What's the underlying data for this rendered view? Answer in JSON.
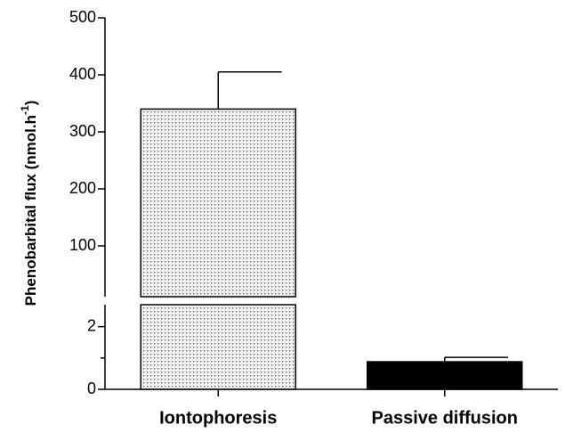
{
  "chart_data": {
    "type": "broken_bar",
    "y_label": "Phenobarbital flux (nmol.h",
    "y_label_superscript": "-1",
    "y_label_end": ")",
    "categories": [
      "Iontophoresis",
      "Passive diffusion"
    ],
    "values": [
      340,
      0.88
    ],
    "errors": [
      65,
      0.14
    ],
    "colors": [
      "#e8e8e8",
      "#000000"
    ],
    "patterns": [
      "dots",
      "solid"
    ],
    "segments": [
      {
        "ylim": [
          0,
          2.7
        ],
        "yticks": [
          0,
          2
        ],
        "minor_yticks": [
          1
        ]
      },
      {
        "ylim": [
          11,
          500
        ],
        "yticks": [
          100,
          200,
          300,
          400,
          500
        ]
      }
    ]
  }
}
